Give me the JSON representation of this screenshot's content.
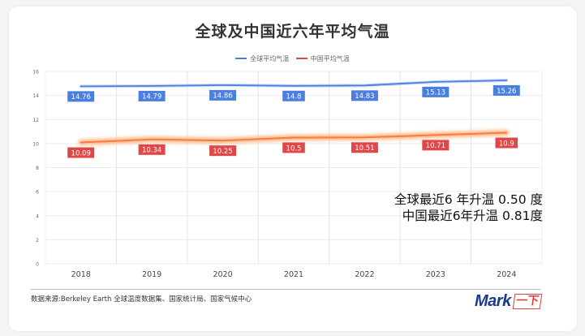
{
  "title": "全球及中国近六年平均气温",
  "legend": [
    {
      "label": "全球平均气温",
      "color": "#4a7fe0"
    },
    {
      "label": "中国平均气温",
      "color": "#e04848"
    }
  ],
  "annotations": {
    "line1": "全球最近6 年升温 0.50 度",
    "line2": "中国最近6年升温 0.81度"
  },
  "footer": {
    "source": "数据来源:Berkeley Earth 全球温度数据集、国家统计局、国家气候中心",
    "logo_text": "Mark",
    "logo_badge": "一下"
  },
  "chart_data": {
    "type": "line",
    "title": "全球及中国近六年平均气温",
    "categories": [
      "2018",
      "2019",
      "2020",
      "2021",
      "2022",
      "2023",
      "2024"
    ],
    "series": [
      {
        "name": "全球平均气温",
        "color": "#4a7fe0",
        "values": [
          14.76,
          14.79,
          14.86,
          14.8,
          14.83,
          15.13,
          15.26
        ]
      },
      {
        "name": "中国平均气温",
        "color": "#e04848",
        "values": [
          10.09,
          10.34,
          10.25,
          10.5,
          10.51,
          10.71,
          10.9
        ]
      }
    ],
    "xlabel": "",
    "ylabel": "",
    "ylim": [
      0,
      16
    ],
    "yticks": [
      0,
      2,
      4,
      6,
      8,
      10,
      12,
      14,
      16
    ],
    "grid": true,
    "legend_position": "top"
  }
}
